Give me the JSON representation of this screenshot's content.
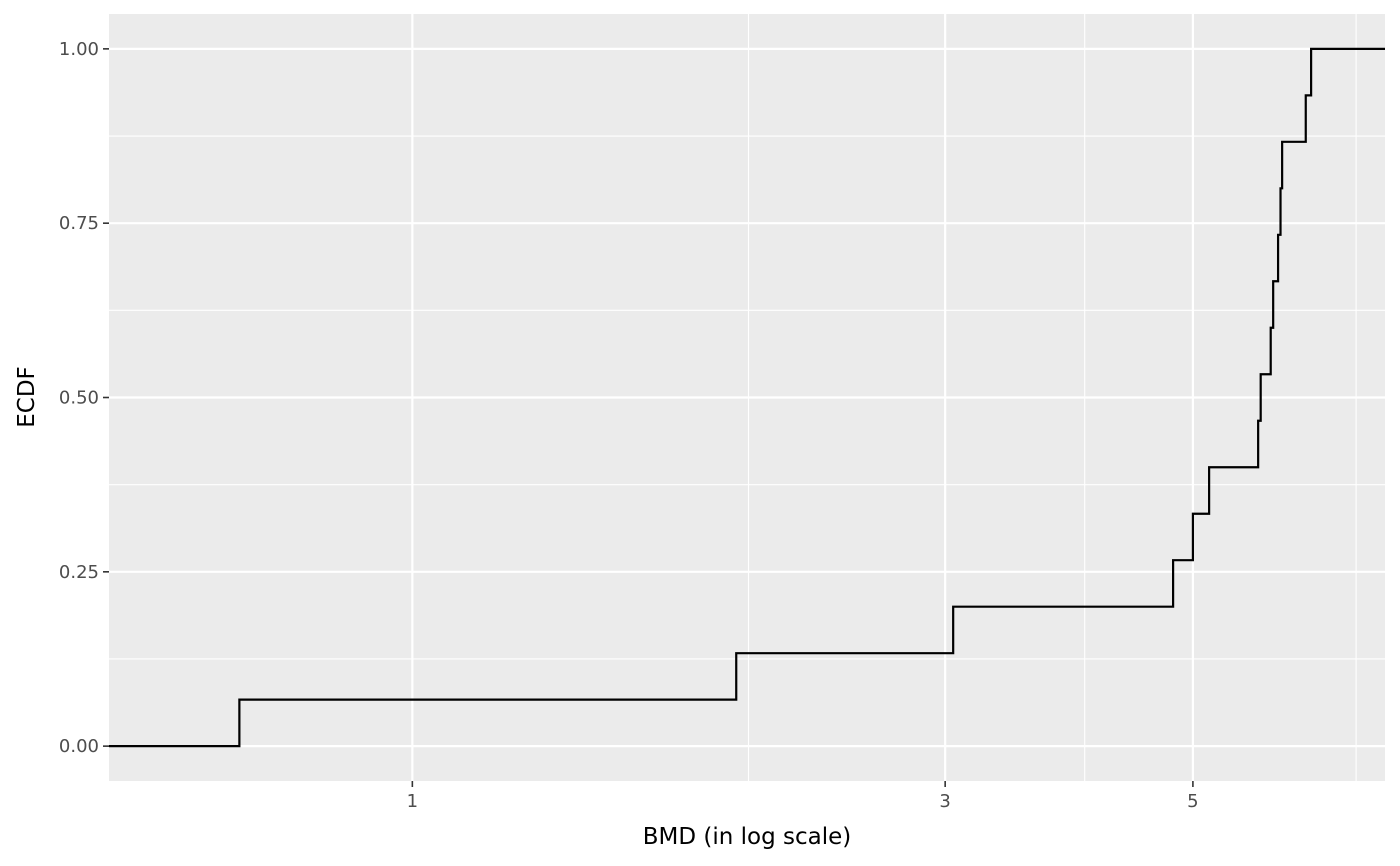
{
  "chart_data": {
    "type": "line",
    "subtype": "ecdf-step",
    "title": "",
    "xlabel": "BMD (in log scale)",
    "ylabel": "ECDF",
    "x_scale": "log",
    "xlim": [
      0.535,
      7.43
    ],
    "ylim": [
      -0.05,
      1.05
    ],
    "x_ticks": [
      1,
      3,
      5
    ],
    "x_tick_labels": [
      "1",
      "3",
      "5"
    ],
    "x_minor_ticks": [
      2,
      4,
      7
    ],
    "y_ticks": [
      0,
      0.25,
      0.5,
      0.75,
      1
    ],
    "y_tick_labels": [
      "0.00",
      "0.25",
      "0.50",
      "0.75",
      "1.00"
    ],
    "grid": true,
    "legend": "none",
    "colors": {
      "panel": "#ebebeb",
      "grid": "#ffffff",
      "line": "#000000"
    },
    "series": [
      {
        "x": [
          0.7,
          1.95,
          3.05,
          4.8,
          5.0,
          5.17,
          5.72,
          5.75,
          5.87,
          5.9,
          5.96,
          5.99,
          6.01,
          6.31,
          6.38
        ],
        "y": [
          0.0667,
          0.1333,
          0.2,
          0.2667,
          0.3333,
          0.4,
          0.4667,
          0.5333,
          0.6,
          0.6667,
          0.7333,
          0.8,
          0.8667,
          0.9333,
          1.0
        ]
      }
    ]
  }
}
